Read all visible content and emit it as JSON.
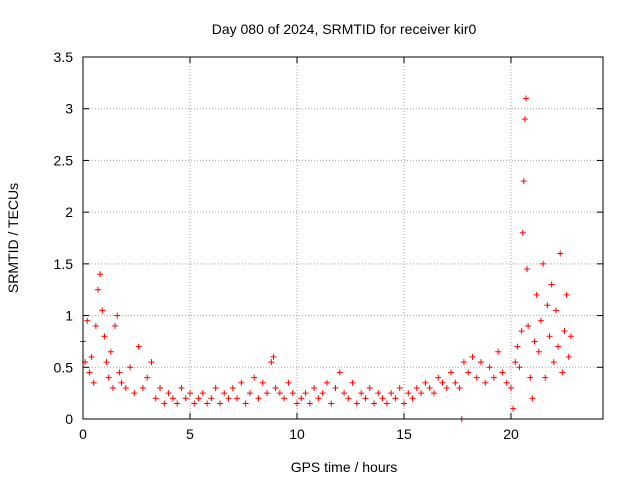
{
  "chart_data": {
    "type": "scatter",
    "title": "Day 080 of 2024, SRMTID for receiver kir0",
    "xlabel": "GPS time / hours",
    "ylabel": "SRMTID / TECUs",
    "xlim": [
      0,
      24.3
    ],
    "ylim": [
      0,
      3.5
    ],
    "xticks": [
      0,
      5,
      10,
      15,
      20
    ],
    "xtick_labels": [
      "0",
      "5",
      "10",
      "15",
      "20"
    ],
    "yticks": [
      0,
      0.5,
      1,
      1.5,
      2,
      2.5,
      3,
      3.5
    ],
    "ytick_labels": [
      "0",
      "0.5",
      "1",
      "1.5",
      "2",
      "2.5",
      "3",
      "3.5"
    ],
    "grid": true,
    "marker": "+",
    "marker_color": "#ff0000",
    "series": [
      {
        "name": "SRMTID",
        "x": [
          0.0,
          0.1,
          0.2,
          0.3,
          0.4,
          0.5,
          0.6,
          0.7,
          0.8,
          0.9,
          1.0,
          1.1,
          1.2,
          1.3,
          1.4,
          1.5,
          1.6,
          1.7,
          1.8,
          2.0,
          2.2,
          2.4,
          2.6,
          2.8,
          3.0,
          3.2,
          3.4,
          3.6,
          3.8,
          4.0,
          4.2,
          4.4,
          4.6,
          4.8,
          5.0,
          5.2,
          5.4,
          5.6,
          5.8,
          6.0,
          6.2,
          6.4,
          6.6,
          6.8,
          7.0,
          7.2,
          7.4,
          7.6,
          7.8,
          8.0,
          8.2,
          8.4,
          8.6,
          8.8,
          8.9,
          9.0,
          9.2,
          9.4,
          9.6,
          9.8,
          10.0,
          10.2,
          10.4,
          10.6,
          10.8,
          11.0,
          11.2,
          11.4,
          11.6,
          11.8,
          12.0,
          12.2,
          12.4,
          12.6,
          12.8,
          13.0,
          13.2,
          13.4,
          13.6,
          13.8,
          14.0,
          14.2,
          14.4,
          14.6,
          14.8,
          15.0,
          15.2,
          15.4,
          15.6,
          15.8,
          16.0,
          16.2,
          16.4,
          16.6,
          16.8,
          17.0,
          17.2,
          17.4,
          17.6,
          17.7,
          17.8,
          18.0,
          18.2,
          18.4,
          18.6,
          18.8,
          19.0,
          19.2,
          19.4,
          19.6,
          19.8,
          20.0,
          20.1,
          20.2,
          20.3,
          20.4,
          20.5,
          20.55,
          20.6,
          20.65,
          20.7,
          20.75,
          20.8,
          20.9,
          21.0,
          21.1,
          21.2,
          21.3,
          21.4,
          21.5,
          21.6,
          21.7,
          21.8,
          21.9,
          22.0,
          22.1,
          22.2,
          22.3,
          22.4,
          22.5,
          22.6,
          22.7,
          22.8
        ],
        "y": [
          0.75,
          0.55,
          0.95,
          0.45,
          0.6,
          0.35,
          0.9,
          1.25,
          1.4,
          1.05,
          0.8,
          0.55,
          0.4,
          0.65,
          0.3,
          0.9,
          1.0,
          0.45,
          0.35,
          0.3,
          0.5,
          0.25,
          0.7,
          0.3,
          0.4,
          0.55,
          0.2,
          0.3,
          0.15,
          0.25,
          0.2,
          0.15,
          0.3,
          0.2,
          0.25,
          0.15,
          0.2,
          0.25,
          0.15,
          0.2,
          0.3,
          0.15,
          0.25,
          0.2,
          0.3,
          0.2,
          0.35,
          0.15,
          0.25,
          0.4,
          0.2,
          0.35,
          0.25,
          0.55,
          0.6,
          0.3,
          0.25,
          0.2,
          0.35,
          0.25,
          0.15,
          0.2,
          0.25,
          0.15,
          0.3,
          0.2,
          0.25,
          0.35,
          0.15,
          0.3,
          0.45,
          0.25,
          0.2,
          0.35,
          0.15,
          0.25,
          0.2,
          0.3,
          0.15,
          0.25,
          0.2,
          0.15,
          0.25,
          0.2,
          0.3,
          0.15,
          0.25,
          0.2,
          0.3,
          0.25,
          0.35,
          0.3,
          0.25,
          0.4,
          0.35,
          0.3,
          0.45,
          0.35,
          0.3,
          0.0,
          0.55,
          0.45,
          0.6,
          0.4,
          0.55,
          0.35,
          0.5,
          0.4,
          0.65,
          0.45,
          0.35,
          0.3,
          0.1,
          0.55,
          0.7,
          0.5,
          0.85,
          1.8,
          2.3,
          2.9,
          3.1,
          1.45,
          0.9,
          0.4,
          0.2,
          0.75,
          1.2,
          0.65,
          0.95,
          1.5,
          0.4,
          1.1,
          0.8,
          1.3,
          0.55,
          1.05,
          0.7,
          1.6,
          0.45,
          0.85,
          1.2,
          0.6,
          0.8
        ]
      }
    ]
  }
}
